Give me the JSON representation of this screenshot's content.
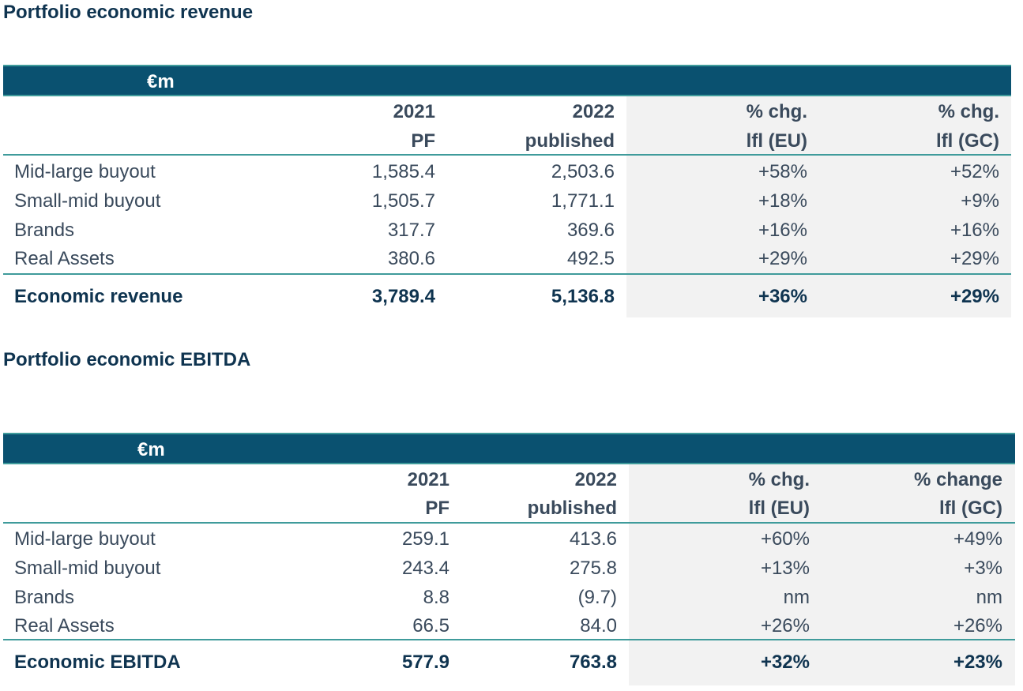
{
  "revenue": {
    "title": "Portfolio economic revenue",
    "unit": "€m",
    "headers": [
      {
        "line1": "2021",
        "line2": "PF"
      },
      {
        "line1": "2022",
        "line2": "published"
      },
      {
        "line1": "% chg.",
        "line2": "lfl (EU)"
      },
      {
        "line1": "% chg.",
        "line2": "lfl (GC)"
      }
    ],
    "rows": [
      {
        "label": "Mid-large buyout",
        "v2021": "1,585.4",
        "v2022": "2,503.6",
        "eu": "+58%",
        "gc": "+52%"
      },
      {
        "label": "Small-mid buyout",
        "v2021": "1,505.7",
        "v2022": "1,771.1",
        "eu": "+18%",
        "gc": "+9%"
      },
      {
        "label": "Brands",
        "v2021": "317.7",
        "v2022": "369.6",
        "eu": "+16%",
        "gc": "+16%"
      },
      {
        "label": "Real Assets",
        "v2021": "380.6",
        "v2022": "492.5",
        "eu": "+29%",
        "gc": "+29%"
      }
    ],
    "total": {
      "label": "Economic revenue",
      "v2021": "3,789.4",
      "v2022": "5,136.8",
      "eu": "+36%",
      "gc": "+29%"
    }
  },
  "ebitda": {
    "title": "Portfolio economic EBITDA",
    "unit": "€m",
    "headers": [
      {
        "line1": "2021",
        "line2": "PF"
      },
      {
        "line1": "2022",
        "line2": "published"
      },
      {
        "line1": "% chg.",
        "line2": "lfl (EU)"
      },
      {
        "line1": "% change",
        "line2": "lfl (GC)"
      }
    ],
    "rows": [
      {
        "label": "Mid-large buyout",
        "v2021": "259.1",
        "v2022": "413.6",
        "eu": "+60%",
        "gc": "+49%"
      },
      {
        "label": "Small-mid buyout",
        "v2021": "243.4",
        "v2022": "275.8",
        "eu": "+13%",
        "gc": "+3%"
      },
      {
        "label": "Brands",
        "v2021": "8.8",
        "v2022": "(9.7)",
        "eu": "nm",
        "gc": "nm"
      },
      {
        "label": "Real Assets",
        "v2021": "66.5",
        "v2022": "84.0",
        "eu": "+26%",
        "gc": "+26%"
      }
    ],
    "total": {
      "label": "Economic EBITDA",
      "v2021": "577.9",
      "v2022": "763.8",
      "eu": "+32%",
      "gc": "+23%"
    }
  }
}
